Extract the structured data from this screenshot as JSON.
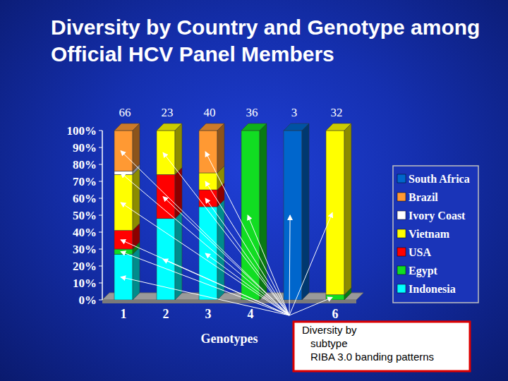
{
  "chart_data": {
    "type": "bar",
    "stacked": true,
    "title": "Diversity by Country and Genotype among Official HCV Panel Members",
    "x_label": "Genotypes",
    "categories": [
      "1",
      "2",
      "3",
      "4",
      null,
      "6"
    ],
    "totals": [
      66,
      23,
      40,
      36,
      3,
      32
    ],
    "series": [
      {
        "name": "Indonesia",
        "color": "#00ffff",
        "values": [
          27,
          48,
          55,
          0,
          0,
          0
        ]
      },
      {
        "name": "Egypt",
        "color": "#11dd22",
        "values": [
          3,
          0,
          0,
          100,
          0,
          3
        ]
      },
      {
        "name": "USA",
        "color": "#ff0000",
        "values": [
          11,
          26,
          10,
          0,
          0,
          0
        ]
      },
      {
        "name": "Vietnam",
        "color": "#ffff00",
        "values": [
          33,
          26,
          10,
          0,
          0,
          97
        ]
      },
      {
        "name": "Ivory Coast",
        "color": "#ffffff",
        "values": [
          2,
          0,
          0,
          0,
          0,
          0
        ]
      },
      {
        "name": "Brazil",
        "color": "#ff9933",
        "values": [
          24,
          0,
          25,
          0,
          0,
          0
        ]
      },
      {
        "name": "South Africa",
        "color": "#0066cc",
        "values": [
          0,
          0,
          0,
          0,
          100,
          0
        ]
      }
    ],
    "ylim": [
      0,
      100
    ],
    "yticks": [
      {
        "value": 0,
        "label": "0%"
      },
      {
        "value": 10,
        "label": "10%"
      },
      {
        "value": 20,
        "label": "20%"
      },
      {
        "value": 30,
        "label": "30%"
      },
      {
        "value": 40,
        "label": "40%"
      },
      {
        "value": 50,
        "label": "50%"
      },
      {
        "value": 60,
        "label": "60%"
      },
      {
        "value": 70,
        "label": "70%"
      },
      {
        "value": 80,
        "label": "80%"
      },
      {
        "value": 90,
        "label": "90%"
      },
      {
        "value": 100,
        "label": "100%"
      }
    ],
    "grid": false,
    "legend": "right",
    "annotation": [
      "Diversity by",
      "subtype",
      "RIBA 3.0 banding patterns"
    ]
  }
}
